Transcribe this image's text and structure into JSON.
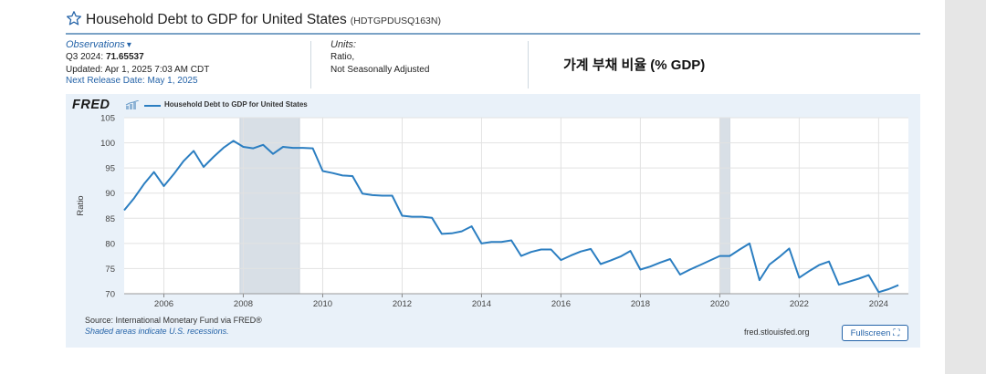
{
  "header": {
    "title": "Household Debt to GDP for United States",
    "series_code": "(HDTGPDUSQ163N)",
    "star_icon": "star-outline-icon"
  },
  "observations": {
    "label": "Observations",
    "latest": "Q3 2024:",
    "latest_value": "71.65537",
    "updated": "Updated: Apr 1, 2025 7:03 AM CDT",
    "next_release": "Next Release Date: May 1, 2025"
  },
  "units": {
    "label": "Units:",
    "line1": "Ratio,",
    "line2": "Not Seasonally Adjusted"
  },
  "annotation": "가계 부채 비율 (% GDP)",
  "footer": {
    "source": "Source: International Monetary Fund via FRED®",
    "note": "Shaded areas indicate U.S. recessions.",
    "site": "fred.stlouisfed.org",
    "fullscreen": "Fullscreen"
  },
  "logo_text": "FRED",
  "colors": {
    "line": "#2b7ec1",
    "recession": "#d8dfe6",
    "link": "#2463a8",
    "plot_bg": "#ffffff"
  },
  "chart_data": {
    "type": "line",
    "legend": "Household Debt to GDP for United States",
    "ylabel": "Ratio",
    "xlabel": "",
    "ylim": [
      70,
      105
    ],
    "xlim": [
      2005.0,
      2024.75
    ],
    "yticks": [
      70,
      75,
      80,
      85,
      90,
      95,
      100,
      105
    ],
    "xticks": [
      2006,
      2008,
      2010,
      2012,
      2014,
      2016,
      2018,
      2020,
      2022,
      2024
    ],
    "grid": true,
    "recessions": [
      [
        2007.917,
        2009.417
      ],
      [
        2020.0,
        2020.25
      ]
    ],
    "series": [
      {
        "x": [
          2005.0,
          2005.25,
          2005.5,
          2005.75,
          2006.0,
          2006.25,
          2006.5,
          2006.75,
          2007.0,
          2007.25,
          2007.5,
          2007.75,
          2008.0,
          2008.25,
          2008.5,
          2008.75,
          2009.0,
          2009.25,
          2009.5,
          2009.75,
          2010.0,
          2010.25,
          2010.5,
          2010.75,
          2011.0,
          2011.25,
          2011.5,
          2011.75,
          2012.0,
          2012.25,
          2012.5,
          2012.75,
          2013.0,
          2013.25,
          2013.5,
          2013.75,
          2014.0,
          2014.25,
          2014.5,
          2014.75,
          2015.0,
          2015.25,
          2015.5,
          2015.75,
          2016.0,
          2016.25,
          2016.5,
          2016.75,
          2017.0,
          2017.25,
          2017.5,
          2017.75,
          2018.0,
          2018.25,
          2018.5,
          2018.75,
          2019.0,
          2019.25,
          2019.5,
          2019.75,
          2020.0,
          2020.25,
          2020.5,
          2020.75,
          2021.0,
          2021.25,
          2021.5,
          2021.75,
          2022.0,
          2022.25,
          2022.5,
          2022.75,
          2023.0,
          2023.25,
          2023.5,
          2023.75,
          2024.0,
          2024.25,
          2024.5
        ],
        "values": [
          86.6,
          89.0,
          91.8,
          94.2,
          91.4,
          93.8,
          96.4,
          98.4,
          95.2,
          97.2,
          99.0,
          100.4,
          99.2,
          98.9,
          99.6,
          97.8,
          99.2,
          99.0,
          99.0,
          98.9,
          94.4,
          94.0,
          93.5,
          93.4,
          89.9,
          89.6,
          89.5,
          89.5,
          85.5,
          85.3,
          85.3,
          85.1,
          81.9,
          82.0,
          82.4,
          83.4,
          80.0,
          80.3,
          80.3,
          80.6,
          77.5,
          78.3,
          78.8,
          78.8,
          76.7,
          77.6,
          78.4,
          78.9,
          75.9,
          76.6,
          77.4,
          78.5,
          74.8,
          75.4,
          76.2,
          76.9,
          73.8,
          74.8,
          75.7,
          76.6,
          77.5,
          77.5,
          78.8,
          80.0,
          72.7,
          75.8,
          77.3,
          79.0,
          73.2,
          74.5,
          75.7,
          76.4,
          71.8,
          72.4,
          73.0,
          73.7,
          70.3,
          70.9,
          71.7
        ]
      }
    ]
  }
}
